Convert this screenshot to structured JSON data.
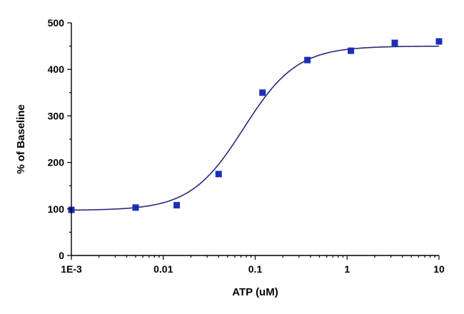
{
  "chart_data": {
    "type": "scatter",
    "xlabel": "ATP (uM)",
    "ylabel": "% of Baseline",
    "xscale": "log",
    "xlim": [
      0.001,
      10
    ],
    "ylim": [
      0,
      500
    ],
    "x_ticks": [
      {
        "value": 0.001,
        "label": "1E-3"
      },
      {
        "value": 0.01,
        "label": "0.01"
      },
      {
        "value": 0.1,
        "label": "0.1"
      },
      {
        "value": 1,
        "label": "1"
      },
      {
        "value": 10,
        "label": "10"
      }
    ],
    "y_ticks": [
      {
        "value": 0,
        "label": "0"
      },
      {
        "value": 100,
        "label": "100"
      },
      {
        "value": 200,
        "label": "200"
      },
      {
        "value": 300,
        "label": "300"
      },
      {
        "value": 400,
        "label": "400"
      },
      {
        "value": 500,
        "label": "500"
      }
    ],
    "series": [
      {
        "marker": "square",
        "color": "#1c2fb8",
        "x": [
          0.001,
          0.005,
          0.014,
          0.04,
          0.12,
          0.37,
          1.1,
          3.3,
          10
        ],
        "y": [
          98,
          103,
          108,
          175,
          350,
          420,
          440,
          457,
          460
        ]
      }
    ],
    "fit": {
      "type": "sigmoidal dose-response",
      "color": "#2a2a7a",
      "bottom": 97,
      "top": 450,
      "ec50": 0.075,
      "hill": 1.5
    },
    "grid": false,
    "legend": "none"
  }
}
